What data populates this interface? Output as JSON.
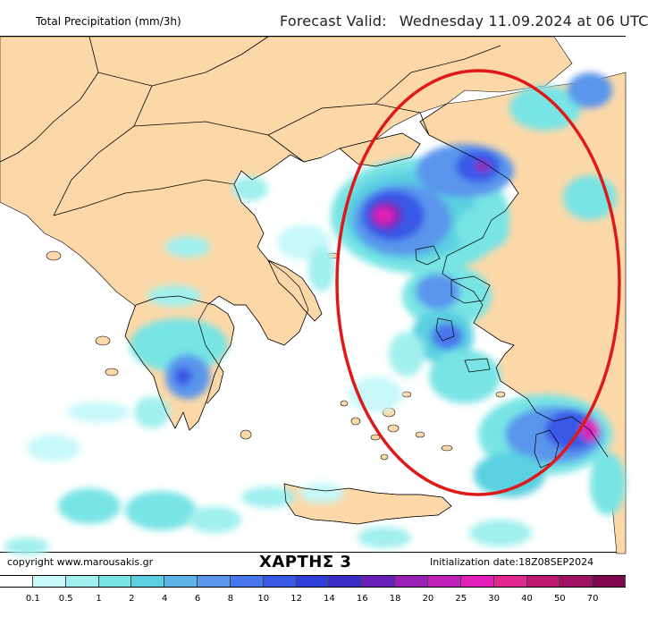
{
  "header": {
    "title": "Total Precipitation (mm/3h)",
    "forecast_label": "Forecast Valid:",
    "forecast_value": "Wednesday 11.09.2024 at 06 UTC"
  },
  "footer": {
    "copyright": "copyright www.marousakis.gr",
    "map_label": "ΧΑΡΤΗΣ 3",
    "initialization": "Initialization date:18Z08SEP2024"
  },
  "legend": {
    "ticks": [
      "0.1",
      "0.5",
      "1",
      "2",
      "4",
      "6",
      "8",
      "10",
      "12",
      "14",
      "16",
      "18",
      "20",
      "25",
      "30",
      "40",
      "50",
      "70"
    ],
    "colors": [
      "#ffffff",
      "#c8f8f8",
      "#a0f0ee",
      "#78e4e4",
      "#5ad0e0",
      "#5cb4e6",
      "#5a96ec",
      "#4876ec",
      "#3858e6",
      "#2e40d8",
      "#3a2cc4",
      "#6a20b8",
      "#9820b4",
      "#c020b8",
      "#e020b8",
      "#e02890",
      "#c01870",
      "#a01060",
      "#800850"
    ]
  },
  "map": {
    "land_color": "#fcd8a8",
    "sea_color": "#ffffff",
    "highlight_color": "#e01818"
  }
}
